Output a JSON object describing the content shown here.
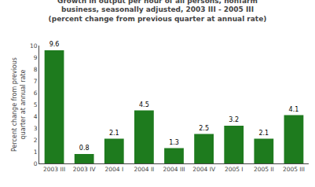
{
  "chart_data": {
    "type": "bar",
    "title": "Growth in output per hour of all persons, nonfarm\nbusiness, seasonally adjusted, 2003 III - 2005 III\n(percent change from previous quarter at annual rate)",
    "ylabel": "Percent change from previous\nquarter at annual rate",
    "categories": [
      "2003 III",
      "2003 IV",
      "2004 I",
      "2004 II",
      "2004 III",
      "2004 IV",
      "2005 I",
      "2005 II",
      "2005 III"
    ],
    "values": [
      9.6,
      0.8,
      2.1,
      4.5,
      1.3,
      2.5,
      3.2,
      2.1,
      4.1
    ],
    "color": "#1e7b1e",
    "ylim": [
      0,
      10
    ],
    "yticks": [
      0,
      1,
      2,
      3,
      4,
      5,
      6,
      7,
      8,
      9,
      10
    ],
    "grid": false,
    "data_labels": true
  }
}
